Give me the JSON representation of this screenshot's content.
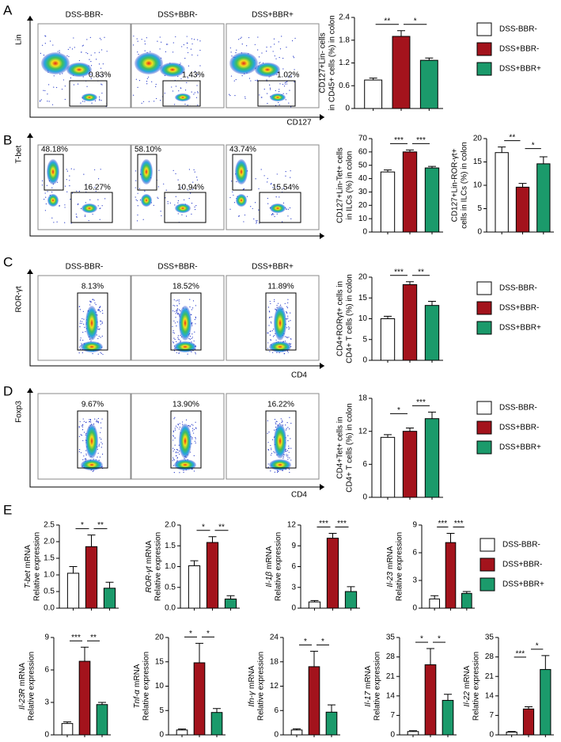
{
  "panel_labels": [
    "A",
    "B",
    "C",
    "D",
    "E"
  ],
  "flow_panels": [
    {
      "y_channel": "Lin",
      "x_channel": "CD127",
      "columns": [
        "DSS-BBR-",
        "DSS+BBR-",
        "DSS+BBR+"
      ],
      "gates": [
        [
          "0.83%"
        ],
        [
          "1.43%"
        ],
        [
          "1.02%"
        ]
      ]
    },
    {
      "y_channel": "T-bet",
      "x_channel": "ROR-γt",
      "gates": [
        [
          "48.18%",
          "16.27%"
        ],
        [
          "58.10%",
          "10.94%"
        ],
        [
          "43.74%",
          "15.54%"
        ]
      ]
    },
    {
      "y_channel": "ROR-γt",
      "x_channel": "CD4",
      "columns": [
        "DSS-BBR-",
        "DSS+BBR-",
        "DSS+BBR+"
      ],
      "gates": [
        [
          "8.13%"
        ],
        [
          "18.52%"
        ],
        [
          "11.89%"
        ]
      ]
    },
    {
      "y_channel": "Foxp3",
      "x_channel": "CD4",
      "gates": [
        [
          "9.67%"
        ],
        [
          "13.90%"
        ],
        [
          "16.22%"
        ]
      ]
    }
  ],
  "legends": [
    {
      "items": [
        {
          "name": "DSS-BBR-",
          "color": "#ffffff"
        },
        {
          "name": "DSS+BBR-",
          "color": "#a3131c"
        },
        {
          "name": "DSS+BBR+",
          "color": "#1b9a6b"
        }
      ]
    },
    {
      "items": [
        {
          "name": "DSS-BBR-",
          "color": "#ffffff"
        },
        {
          "name": "DSS+BBR-",
          "color": "#a3131c"
        },
        {
          "name": "DSS+BBR+",
          "color": "#1b9a6b"
        }
      ]
    },
    {
      "items": [
        {
          "name": "DSS-BBR-",
          "color": "#ffffff"
        },
        {
          "name": "DSS+BBR-",
          "color": "#a3131c"
        },
        {
          "name": "DSS+BBR+",
          "color": "#1b9a6b"
        }
      ]
    },
    {
      "items": [
        {
          "name": "DSS-BBR-",
          "color": "#ffffff"
        },
        {
          "name": "DSS+BBR-",
          "color": "#a3131c"
        },
        {
          "name": "DSS+BBR+",
          "color": "#1b9a6b"
        }
      ]
    }
  ],
  "chart_data": [
    {
      "type": "bar",
      "ylabel": [
        "CD127+Lin- cells",
        "in CD45+ cells (%) in colon"
      ],
      "categories": [
        null,
        null,
        null
      ],
      "colors": [
        "#ffffff",
        "#a3131c",
        "#1b9a6b"
      ],
      "values": [
        0.75,
        1.9,
        1.27
      ],
      "errors": [
        0.05,
        0.15,
        0.06
      ],
      "ylim": [
        0,
        2.4
      ],
      "yticks": [
        0,
        0.6,
        1.2,
        1.8,
        2.4
      ],
      "annotations": [
        {
          "from": 0,
          "to": 1,
          "text": "**"
        },
        {
          "from": 1,
          "to": 2,
          "text": "*"
        }
      ]
    },
    {
      "type": "bar",
      "ylabel": [
        "CD127+Lin-Tet+ cells",
        "in ILCs (%) in colon"
      ],
      "categories": [
        null,
        null,
        null
      ],
      "colors": [
        "#ffffff",
        "#a3131c",
        "#1b9a6b"
      ],
      "values": [
        45,
        60,
        48
      ],
      "errors": [
        1.5,
        1.5,
        1.2
      ],
      "ylim": [
        0,
        70
      ],
      "yticks": [
        0,
        10,
        20,
        30,
        40,
        50,
        60,
        70
      ],
      "annotations": [
        {
          "from": 0,
          "to": 1,
          "text": "***"
        },
        {
          "from": 1,
          "to": 2,
          "text": "***"
        }
      ]
    },
    {
      "type": "bar",
      "ylabel": [
        "CD127+Lin-ROR-γt+",
        "cells in ILCs (%) in colon"
      ],
      "categories": [
        null,
        null,
        null
      ],
      "colors": [
        "#ffffff",
        "#a3131c",
        "#1b9a6b"
      ],
      "values": [
        17,
        9.6,
        14.6
      ],
      "errors": [
        1.2,
        0.8,
        1.5
      ],
      "ylim": [
        0,
        20
      ],
      "yticks": [
        0,
        5,
        10,
        15,
        20
      ],
      "annotations": [
        {
          "from": 0,
          "to": 1,
          "text": "**"
        },
        {
          "from": 1,
          "to": 2,
          "text": "*"
        }
      ]
    },
    {
      "type": "bar",
      "ylabel": [
        "CD4+RORγt+ cells in",
        "CD4+ T cells (%) in colon"
      ],
      "categories": [
        null,
        null,
        null
      ],
      "colors": [
        "#ffffff",
        "#a3131c",
        "#1b9a6b"
      ],
      "values": [
        10,
        18.2,
        13.2
      ],
      "errors": [
        0.6,
        0.7,
        1.0
      ],
      "ylim": [
        0,
        20
      ],
      "yticks": [
        0,
        5,
        10,
        15,
        20
      ],
      "annotations": [
        {
          "from": 0,
          "to": 1,
          "text": "***"
        },
        {
          "from": 1,
          "to": 2,
          "text": "**"
        }
      ]
    },
    {
      "type": "bar",
      "ylabel": [
        "CD4+Tet+ cells in",
        "CD4+ T cells (%) in colon"
      ],
      "categories": [
        null,
        null,
        null
      ],
      "colors": [
        "#ffffff",
        "#a3131c",
        "#1b9a6b"
      ],
      "values": [
        10.9,
        12,
        14.3
      ],
      "errors": [
        0.5,
        0.6,
        1.2
      ],
      "ylim": [
        0,
        18
      ],
      "yticks": [
        0,
        6,
        12,
        18
      ],
      "annotations": [
        {
          "from": 0,
          "to": 1,
          "text": "*"
        },
        {
          "from": 1,
          "to": 2,
          "text": "***"
        }
      ]
    },
    {
      "type": "bar",
      "gene": "T-bet",
      "ylabel": [
        "mRNA",
        "Relative expression"
      ],
      "categories": [
        null,
        null,
        null
      ],
      "colors": [
        "#ffffff",
        "#a3131c",
        "#1b9a6b"
      ],
      "values": [
        1.05,
        1.85,
        0.6
      ],
      "errors": [
        0.2,
        0.35,
        0.18
      ],
      "ylim": [
        0,
        2.5
      ],
      "yticks": [
        {
          "value": 0,
          "label": "0.0"
        },
        0.5,
        {
          "value": 1,
          "label": "1.0"
        },
        1.5,
        {
          "value": 2,
          "label": "2.0"
        },
        2.5
      ],
      "annotations": [
        {
          "from": 0,
          "to": 1,
          "text": "*"
        },
        {
          "from": 1,
          "to": 2,
          "text": "**"
        }
      ]
    },
    {
      "type": "bar",
      "gene": "ROR-γt",
      "ylabel": [
        "mRNA",
        "Relative expression"
      ],
      "categories": [
        null,
        null,
        null
      ],
      "colors": [
        "#ffffff",
        "#a3131c",
        "#1b9a6b"
      ],
      "values": [
        1.02,
        1.58,
        0.22
      ],
      "errors": [
        0.12,
        0.14,
        0.08
      ],
      "ylim": [
        0,
        2
      ],
      "yticks": [
        {
          "value": 0,
          "label": "0.0"
        },
        0.5,
        {
          "value": 1,
          "label": "1.0"
        },
        1.5,
        {
          "value": 2,
          "label": "2.0"
        }
      ],
      "annotations": [
        {
          "from": 0,
          "to": 1,
          "text": "*"
        },
        {
          "from": 1,
          "to": 2,
          "text": "**"
        }
      ]
    },
    {
      "type": "bar",
      "gene": "Il-1β",
      "ylabel": [
        "mRNA",
        "Relative expression"
      ],
      "categories": [
        null,
        null,
        null
      ],
      "colors": [
        "#ffffff",
        "#a3131c",
        "#1b9a6b"
      ],
      "values": [
        0.9,
        10.1,
        2.4
      ],
      "errors": [
        0.2,
        0.7,
        0.7
      ],
      "ylim": [
        0,
        12
      ],
      "yticks": [
        0,
        3,
        6,
        9,
        12
      ],
      "annotations": [
        {
          "from": 0,
          "to": 1,
          "text": "***"
        },
        {
          "from": 1,
          "to": 2,
          "text": "***"
        }
      ]
    },
    {
      "type": "bar",
      "gene": "Il-23",
      "ylabel": [
        "mRNA",
        "Relative expression"
      ],
      "categories": [
        null,
        null,
        null
      ],
      "colors": [
        "#ffffff",
        "#a3131c",
        "#1b9a6b"
      ],
      "values": [
        1.0,
        7.1,
        1.6
      ],
      "errors": [
        0.35,
        1.0,
        0.2
      ],
      "ylim": [
        0,
        9
      ],
      "yticks": [
        0,
        3,
        6,
        9
      ],
      "annotations": [
        {
          "from": 0,
          "to": 1,
          "text": "***"
        },
        {
          "from": 1,
          "to": 2,
          "text": "***"
        }
      ]
    },
    {
      "type": "bar",
      "gene": "Il-23R",
      "ylabel": [
        "mRNA",
        "Relative expression"
      ],
      "categories": [
        null,
        null,
        null
      ],
      "colors": [
        "#ffffff",
        "#a3131c",
        "#1b9a6b"
      ],
      "values": [
        1.05,
        6.8,
        2.8
      ],
      "errors": [
        0.15,
        1.3,
        0.2
      ],
      "ylim": [
        0,
        9
      ],
      "yticks": [
        0,
        3,
        6,
        9
      ],
      "annotations": [
        {
          "from": 0,
          "to": 1,
          "text": "***"
        },
        {
          "from": 1,
          "to": 2,
          "text": "**"
        }
      ]
    },
    {
      "type": "bar",
      "gene": "Tnf-α",
      "ylabel": [
        "mRNA",
        "Relative expression"
      ],
      "categories": [
        null,
        null,
        null
      ],
      "colors": [
        "#ffffff",
        "#a3131c",
        "#1b9a6b"
      ],
      "values": [
        1.0,
        14.8,
        4.6
      ],
      "errors": [
        0.2,
        4.0,
        0.8
      ],
      "ylim": [
        0,
        20
      ],
      "yticks": [
        0,
        5,
        10,
        15,
        20
      ],
      "annotations": [
        {
          "from": 0,
          "to": 1,
          "text": "*"
        },
        {
          "from": 1,
          "to": 2,
          "text": "*"
        }
      ]
    },
    {
      "type": "bar",
      "gene": "Ifn-γ",
      "ylabel": [
        "mRNA",
        "Relative expression"
      ],
      "categories": [
        null,
        null,
        null
      ],
      "colors": [
        "#ffffff",
        "#a3131c",
        "#1b9a6b"
      ],
      "values": [
        1.2,
        16.8,
        5.6
      ],
      "errors": [
        0.3,
        3.8,
        1.8
      ],
      "ylim": [
        0,
        24
      ],
      "yticks": [
        0,
        6,
        12,
        18,
        24
      ],
      "annotations": [
        {
          "from": 0,
          "to": 1,
          "text": "*"
        },
        {
          "from": 1,
          "to": 2,
          "text": "*"
        }
      ]
    },
    {
      "type": "bar",
      "gene": "Il-17",
      "ylabel": [
        "mRNA",
        "Relative expression"
      ],
      "categories": [
        null,
        null,
        null
      ],
      "colors": [
        "#ffffff",
        "#a3131c",
        "#1b9a6b"
      ],
      "values": [
        1.2,
        25.2,
        12.4
      ],
      "errors": [
        0.3,
        5.8,
        2.2
      ],
      "ylim": [
        0,
        35
      ],
      "yticks": [
        0,
        7,
        14,
        21,
        28,
        35
      ],
      "annotations": [
        {
          "from": 0,
          "to": 1,
          "text": "*"
        },
        {
          "from": 1,
          "to": 2,
          "text": "*"
        }
      ]
    },
    {
      "type": "bar",
      "gene": "Il-22",
      "ylabel": [
        "mRNA",
        "Relative expression"
      ],
      "categories": [
        null,
        null,
        null
      ],
      "colors": [
        "#ffffff",
        "#a3131c",
        "#1b9a6b"
      ],
      "values": [
        1.0,
        9.3,
        23.5
      ],
      "errors": [
        0.2,
        0.8,
        5.0
      ],
      "ylim": [
        0,
        35
      ],
      "yticks": [
        0,
        7,
        14,
        21,
        28,
        35
      ],
      "annotations": [
        {
          "from": 0,
          "to": 1,
          "text": "***"
        },
        {
          "from": 1,
          "to": 2,
          "text": "*"
        }
      ]
    }
  ]
}
